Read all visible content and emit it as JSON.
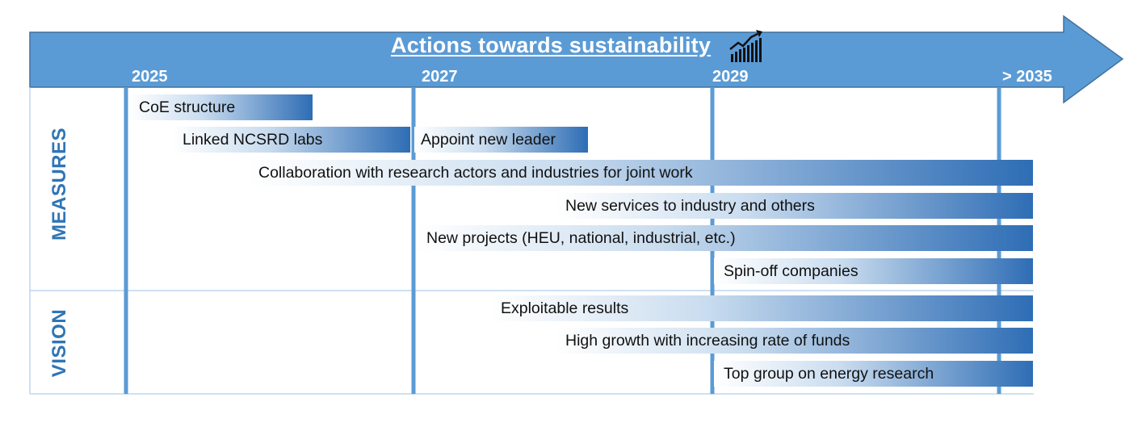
{
  "title": "Actions towards sustainability",
  "icons": {
    "title_icon": "growth-chart-icon"
  },
  "years": [
    "2025",
    "2027",
    "2029",
    "> 2035"
  ],
  "rows": {
    "measures": "MEASURES",
    "vision": "VISION"
  },
  "measures": [
    {
      "label": "CoE structure"
    },
    {
      "label": "Linked NCSRD labs"
    },
    {
      "label": "Appoint new leader"
    },
    {
      "label": "Collaboration with research actors and industries for joint work"
    },
    {
      "label": "New services to industry and others"
    },
    {
      "label": "New projects (HEU, national, industrial, etc.)"
    },
    {
      "label": "Spin-off companies"
    }
  ],
  "vision": [
    {
      "label": "Exploitable results"
    },
    {
      "label": "High growth with increasing rate of funds"
    },
    {
      "label": "Top group on energy research"
    }
  ],
  "colors": {
    "arrow_fill": "#5B9BD5",
    "arrow_stroke": "#41719C",
    "grid_line": "#5B9BD5",
    "bar_end": "#2E6DB5",
    "row_header": "#2E75B6"
  }
}
